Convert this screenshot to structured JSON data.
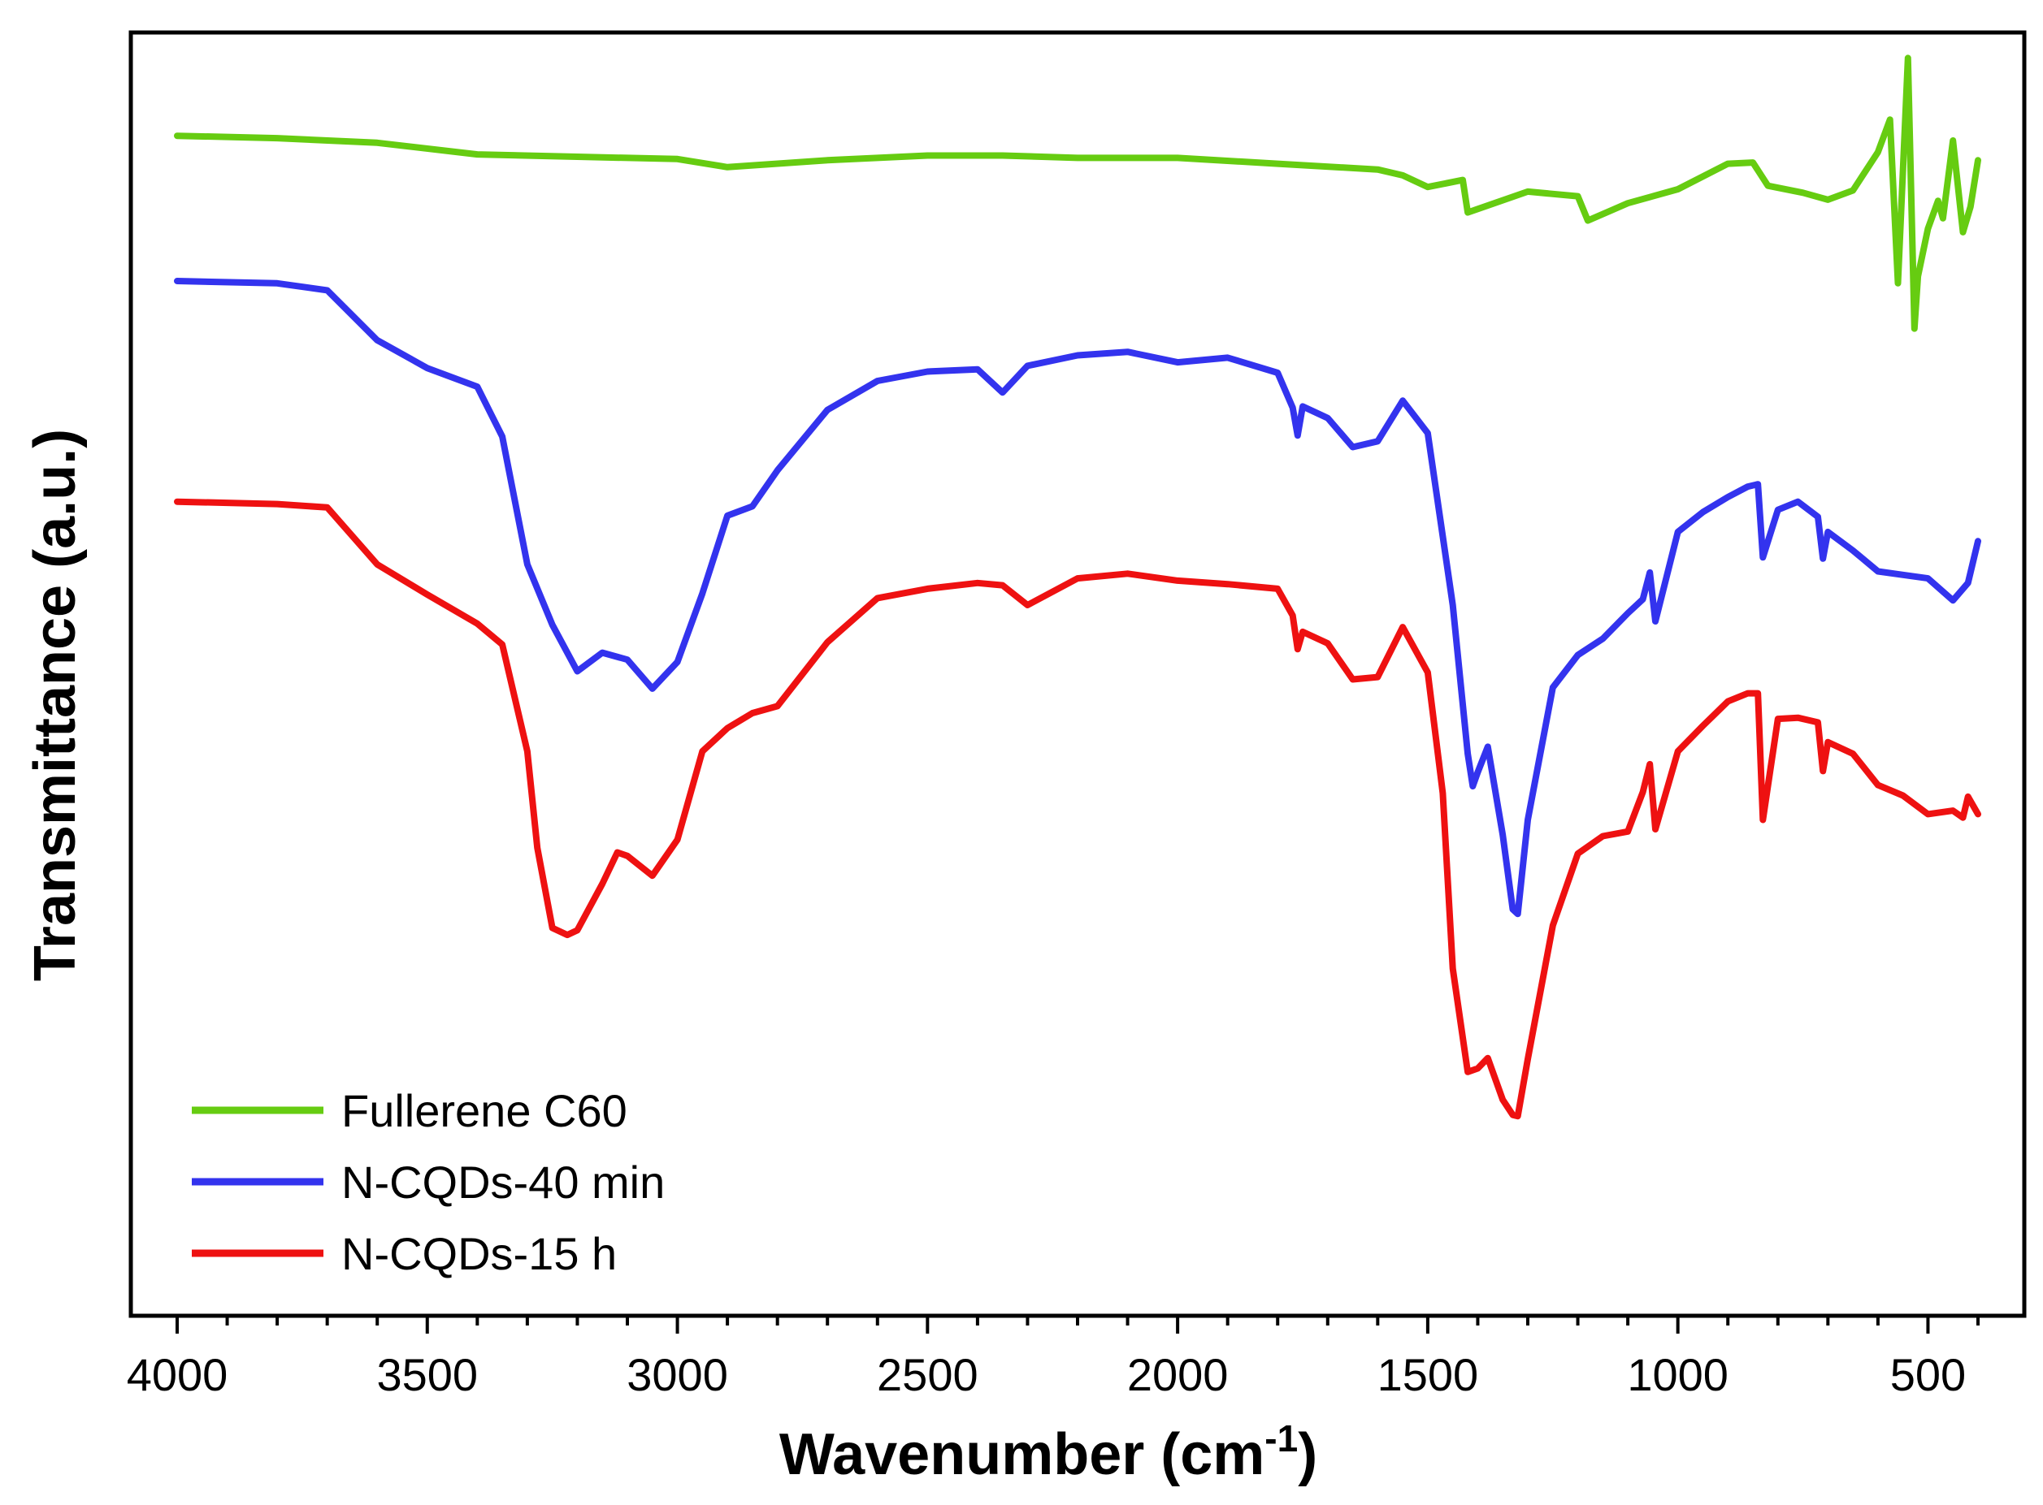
{
  "chart_data": {
    "type": "line",
    "title": "",
    "xlabel": "Wavenumber (cm",
    "xlabel_sup": "-1",
    "xlabel_close": ")",
    "ylabel": "Transmittance (a.u.)",
    "xlim": [
      4000,
      400
    ],
    "ylim": [
      0,
      100
    ],
    "x_reversed": true,
    "y_ticks_shown": false,
    "x_ticks": [
      4000,
      3500,
      3000,
      2500,
      2000,
      1500,
      1000,
      500
    ],
    "x_tick_labels": [
      "4000",
      "3500",
      "3000",
      "2500",
      "2000",
      "1500",
      "1000",
      "500"
    ],
    "legend_position": "bottom-left",
    "series": [
      {
        "name": "Fullerene C60",
        "color": "#66cc11",
        "x": [
          4000,
          3800,
          3600,
          3400,
          3200,
          3000,
          2900,
          2700,
          2500,
          2350,
          2200,
          2000,
          1800,
          1600,
          1550,
          1500,
          1430,
          1420,
          1300,
          1200,
          1180,
          1100,
          1000,
          900,
          850,
          820,
          750,
          700,
          650,
          600,
          576,
          560,
          540,
          527,
          520,
          500,
          480,
          470,
          450,
          430,
          415,
          400
        ],
        "y": [
          93.2,
          93.0,
          92.6,
          91.6,
          91.4,
          91.2,
          90.5,
          91.1,
          91.5,
          91.5,
          91.3,
          91.3,
          90.8,
          90.3,
          89.8,
          88.8,
          89.4,
          86.6,
          88.4,
          88.0,
          85.9,
          87.4,
          88.6,
          90.8,
          90.9,
          88.9,
          88.3,
          87.7,
          88.5,
          91.8,
          94.6,
          80.5,
          99.9,
          76.6,
          81.1,
          85.2,
          87.6,
          86.1,
          92.8,
          84.9,
          87.1,
          91.1
        ]
      },
      {
        "name": "N-CQDs-40 min",
        "color": "#3333ee",
        "x": [
          4000,
          3800,
          3700,
          3600,
          3500,
          3400,
          3350,
          3300,
          3250,
          3200,
          3150,
          3100,
          3050,
          3000,
          2950,
          2900,
          2850,
          2800,
          2700,
          2600,
          2500,
          2400,
          2350,
          2300,
          2200,
          2100,
          2000,
          1900,
          1800,
          1770,
          1760,
          1750,
          1700,
          1650,
          1600,
          1550,
          1500,
          1450,
          1420,
          1410,
          1400,
          1380,
          1350,
          1330,
          1320,
          1300,
          1250,
          1200,
          1150,
          1100,
          1070,
          1056,
          1045,
          1000,
          950,
          900,
          860,
          840,
          830,
          800,
          760,
          720,
          710,
          700,
          650,
          600,
          550,
          500,
          450,
          420,
          400
        ],
        "y": [
          80.7,
          80.5,
          79.9,
          75.6,
          73.2,
          71.6,
          67.3,
          56.3,
          51.1,
          47.1,
          48.7,
          48.1,
          45.6,
          47.9,
          53.8,
          60.5,
          61.3,
          64.4,
          69.6,
          72.1,
          72.9,
          73.1,
          71.1,
          73.4,
          74.3,
          74.6,
          73.7,
          74.1,
          72.8,
          69.8,
          67.4,
          69.9,
          68.9,
          66.4,
          66.9,
          70.4,
          67.6,
          52.8,
          40.0,
          37.2,
          38.4,
          40.6,
          33.0,
          26.6,
          26.2,
          34.3,
          45.7,
          48.5,
          49.9,
          52.1,
          53.3,
          55.6,
          51.4,
          59.1,
          60.8,
          62.1,
          63.0,
          63.2,
          56.9,
          61.0,
          61.7,
          60.4,
          56.8,
          59.1,
          57.5,
          55.7,
          55.4,
          55.1,
          53.2,
          54.7,
          58.3
        ]
      },
      {
        "name": "N-CQDs-15 h",
        "color": "#ee1111",
        "x": [
          4000,
          3800,
          3700,
          3600,
          3500,
          3400,
          3350,
          3300,
          3280,
          3250,
          3220,
          3200,
          3150,
          3120,
          3100,
          3050,
          3000,
          2950,
          2900,
          2850,
          2800,
          2700,
          2600,
          2500,
          2400,
          2350,
          2300,
          2200,
          2100,
          2000,
          1900,
          1800,
          1770,
          1760,
          1750,
          1700,
          1650,
          1600,
          1550,
          1500,
          1470,
          1450,
          1420,
          1400,
          1380,
          1350,
          1330,
          1320,
          1300,
          1250,
          1200,
          1150,
          1100,
          1070,
          1056,
          1045,
          1000,
          950,
          900,
          860,
          840,
          830,
          800,
          760,
          720,
          710,
          700,
          650,
          600,
          550,
          500,
          450,
          430,
          420,
          400
        ],
        "y": [
          61.7,
          61.5,
          61.2,
          56.3,
          53.7,
          51.2,
          49.4,
          40.2,
          31.9,
          25.0,
          24.4,
          24.8,
          28.8,
          31.5,
          31.2,
          29.5,
          32.6,
          40.2,
          42.2,
          43.5,
          44.1,
          49.6,
          53.4,
          54.2,
          54.7,
          54.5,
          52.8,
          55.1,
          55.5,
          54.9,
          54.6,
          54.2,
          51.9,
          49.0,
          50.5,
          49.5,
          46.4,
          46.6,
          50.9,
          47.0,
          36.6,
          21.5,
          12.6,
          12.9,
          13.8,
          10.2,
          8.9,
          8.8,
          13.7,
          25.2,
          31.4,
          32.9,
          33.3,
          36.7,
          39.1,
          33.5,
          40.2,
          42.4,
          44.5,
          45.2,
          45.2,
          34.3,
          43.0,
          43.1,
          42.7,
          38.5,
          41.0,
          40.0,
          37.3,
          36.4,
          34.8,
          35.1,
          34.5,
          36.3,
          34.8
        ]
      }
    ]
  }
}
